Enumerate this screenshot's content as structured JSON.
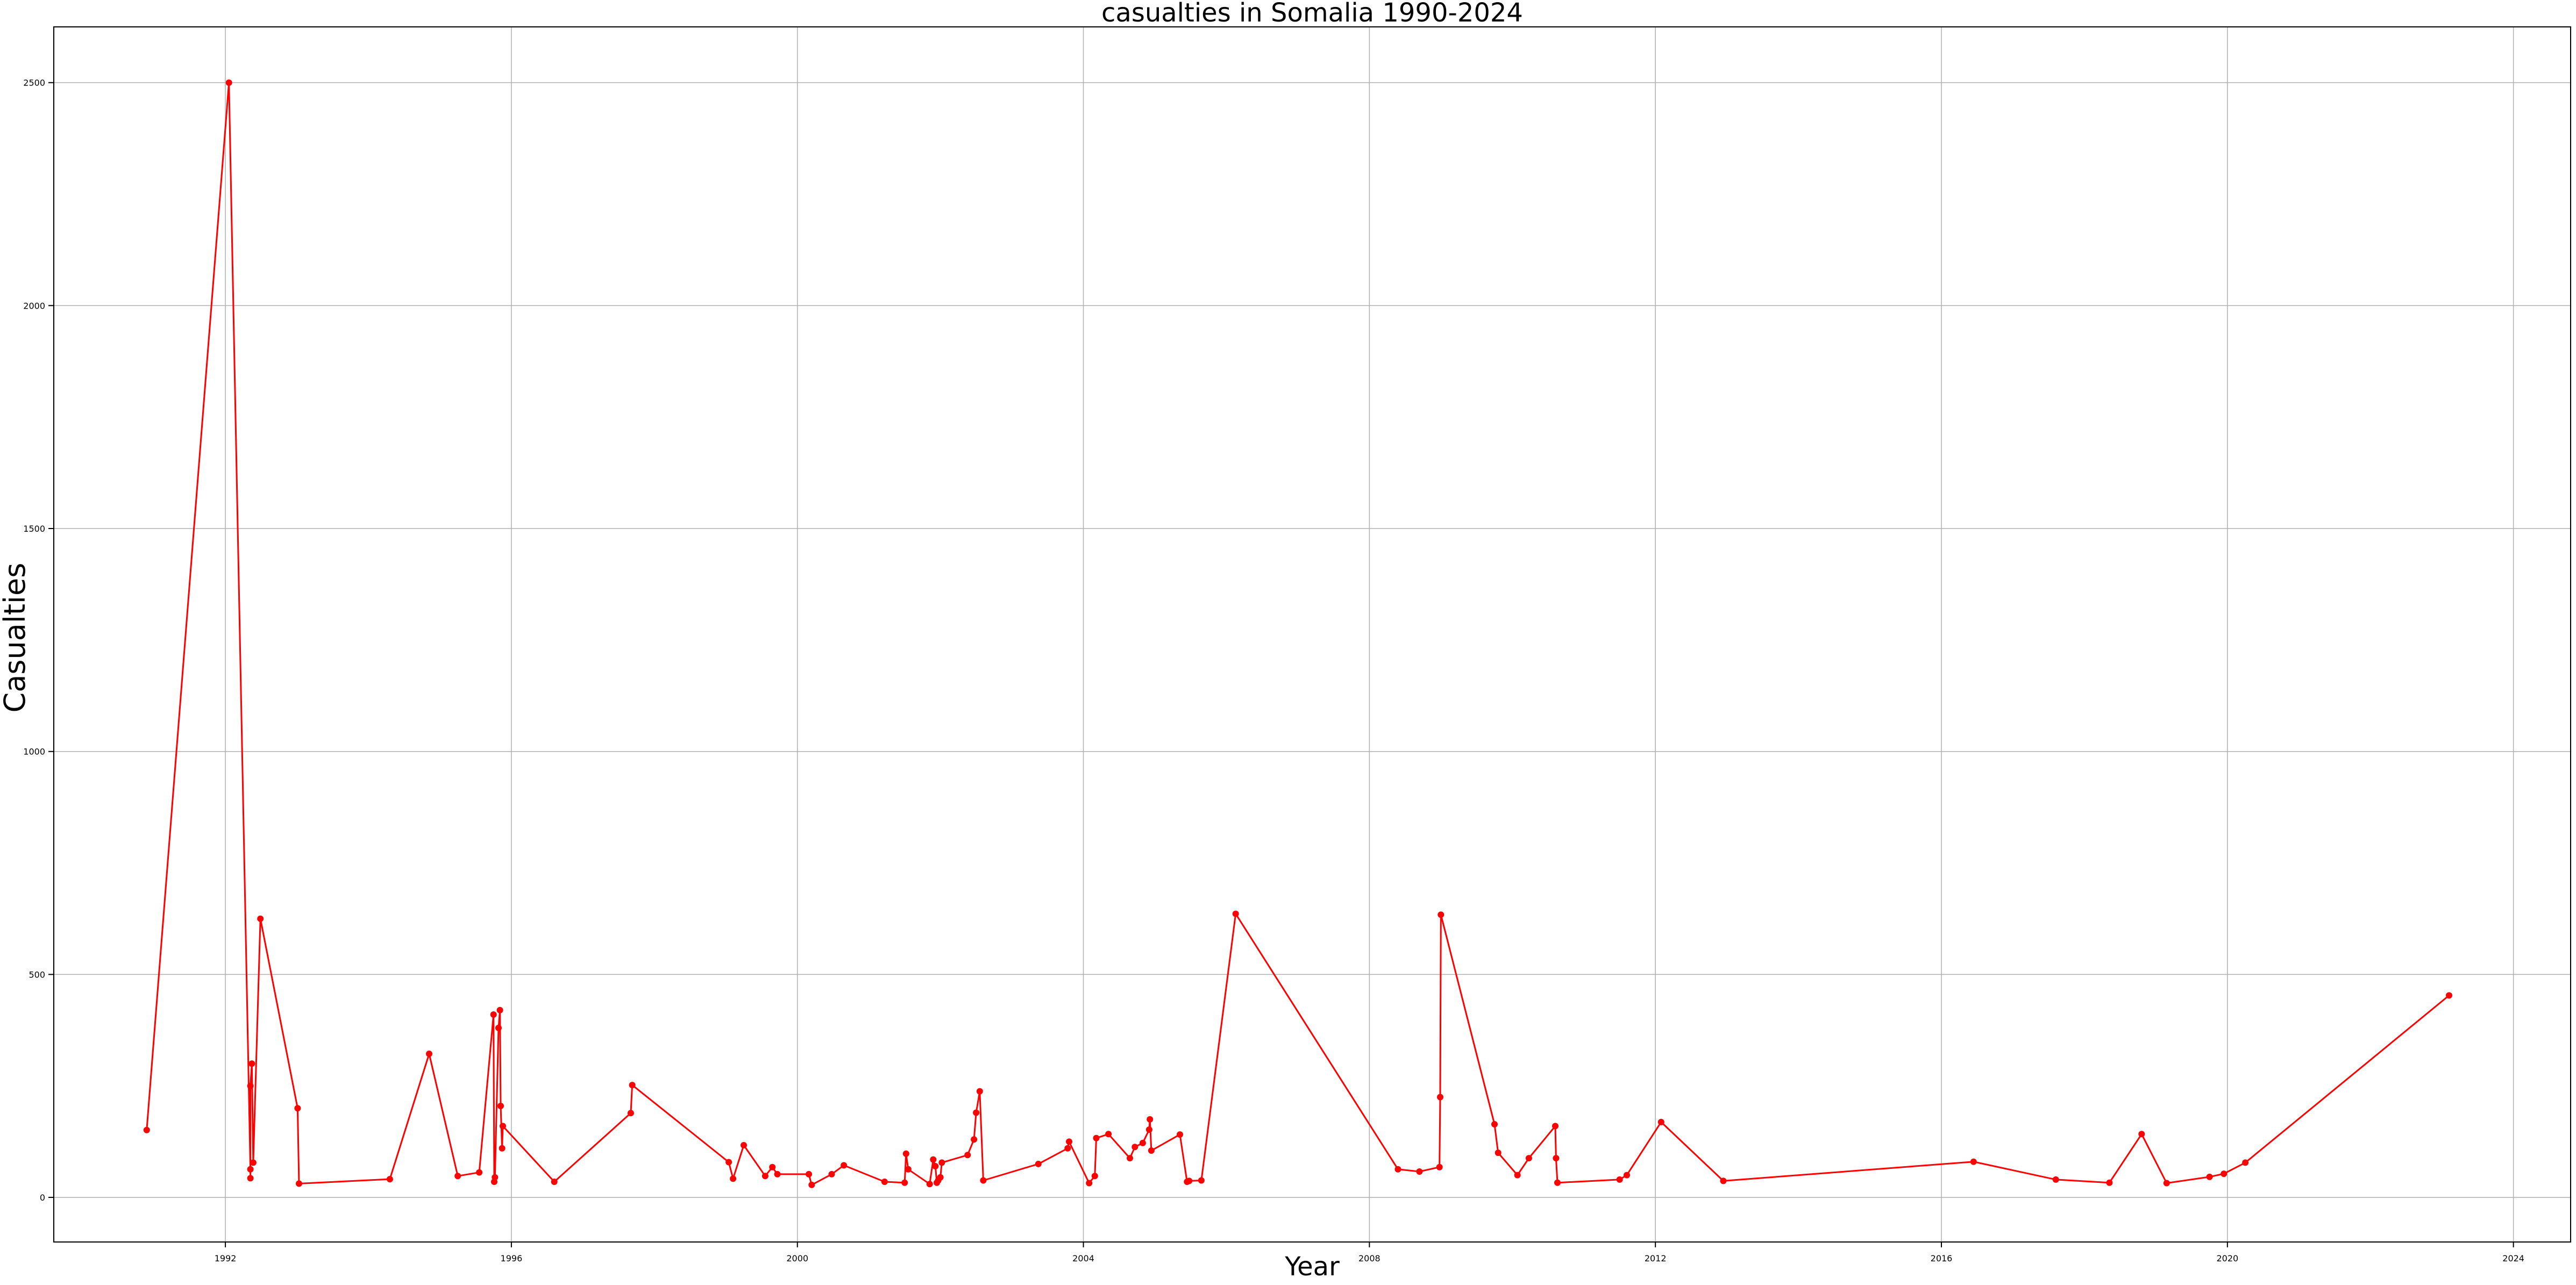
{
  "chart_data": {
    "type": "line",
    "title": "casualties in Somalia 1990-2024",
    "xlabel": "Year",
    "ylabel": "Casualties",
    "xlim": [
      1989.6,
      2024.8
    ],
    "ylim": [
      -100,
      2625
    ],
    "x_ticks": [
      1992,
      1996,
      2000,
      2004,
      2008,
      2012,
      2016,
      2020,
      2024
    ],
    "y_ticks": [
      0,
      500,
      1000,
      1500,
      2000,
      2500
    ],
    "grid": true,
    "colors": {
      "line": "#ff0000",
      "marker": "#ff0000",
      "grid": "#b0b0b0",
      "axes": "#000000"
    },
    "series": [
      {
        "x": [
          1990.9,
          1992.05,
          1992.35,
          1992.35,
          1992.35,
          1992.37,
          1992.39,
          1992.49,
          1993.01,
          1993.03,
          1994.3,
          1994.85,
          1995.25,
          1995.55,
          1995.75,
          1995.76,
          1995.77,
          1995.82,
          1995.84,
          1995.85,
          1995.87,
          1995.88,
          1996.6,
          1997.67,
          1997.69,
          1999.04,
          1999.1,
          1999.25,
          1999.55,
          1999.65,
          1999.72,
          2000.16,
          2000.2,
          2000.48,
          2000.65,
          2001.22,
          2001.5,
          2001.52,
          2001.55,
          2001.85,
          2001.9,
          2001.93,
          2001.95,
          2001.97,
          2002.0,
          2002.02,
          2002.38,
          2002.47,
          2002.5,
          2002.55,
          2002.6,
          2003.37,
          2003.78,
          2003.8,
          2004.08,
          2004.16,
          2004.18,
          2004.35,
          2004.65,
          2004.72,
          2004.83,
          2004.92,
          2004.93,
          2004.95,
          2005.35,
          2005.45,
          2005.48,
          2005.65,
          2006.13,
          2008.4,
          2008.7,
          2008.98,
          2008.99,
          2009.0,
          2009.75,
          2009.8,
          2010.07,
          2010.23,
          2010.6,
          2010.61,
          2010.63,
          2011.5,
          2011.6,
          2012.08,
          2012.95,
          2016.45,
          2017.6,
          2018.35,
          2018.8,
          2019.15,
          2019.75,
          2019.95,
          2020.25,
          2023.1
        ],
        "y": [
          151,
          2500,
          63,
          43,
          250,
          300,
          78,
          625,
          200,
          31,
          41,
          322,
          48,
          56,
          410,
          35,
          45,
          380,
          420,
          205,
          110,
          160,
          35,
          189,
          252,
          79,
          42,
          117,
          48,
          68,
          52,
          52,
          28,
          52,
          72,
          35,
          33,
          98,
          63,
          30,
          85,
          70,
          33,
          38,
          45,
          78,
          95,
          130,
          190,
          238,
          38,
          75,
          110,
          125,
          32,
          48,
          133,
          142,
          88,
          113,
          122,
          152,
          175,
          105,
          141,
          35,
          37,
          38,
          636,
          63,
          58,
          68,
          225,
          634,
          164,
          100,
          50,
          88,
          160,
          88,
          33,
          40,
          50,
          169,
          37,
          80,
          40,
          33,
          142,
          32,
          46,
          53,
          78,
          453
        ]
      }
    ]
  }
}
